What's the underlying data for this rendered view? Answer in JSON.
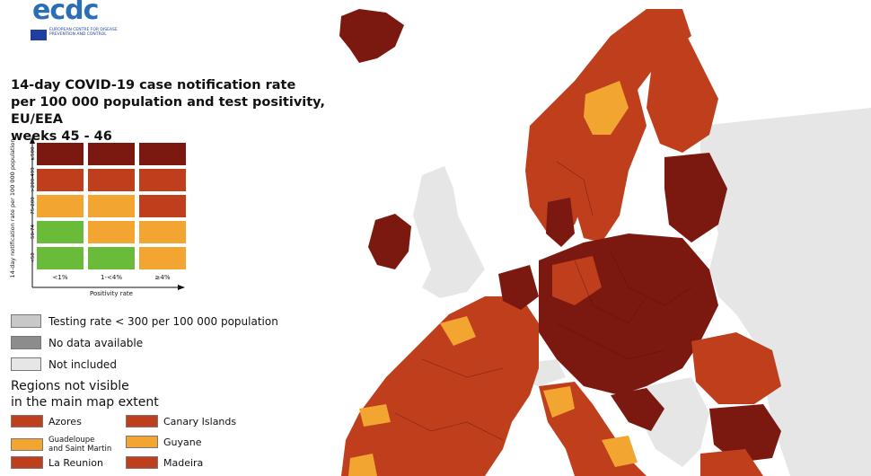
{
  "logo": {
    "word": "ecdc",
    "org": "EUROPEAN CENTRE FOR DISEASE PREVENTION AND CONTROL"
  },
  "title": {
    "line1": "14-day COVID-19 case notification rate",
    "line2": "per 100 000 population and test positivity, EU/EEA",
    "line3": "weeks 45 - 46"
  },
  "matrix": {
    "y_axis_label": "14-day notification rate per 100 000 population",
    "x_axis_label": "Positivity rate",
    "row_labels": [
      "≥500",
      ">200-499",
      "75-200",
      "50-74",
      "<50"
    ],
    "col_labels": [
      "<1%",
      "1-<4%",
      "≥4%"
    ],
    "colors": {
      "dark_red": "#7b1810",
      "red": "#bf3e1c",
      "orange": "#f2a531",
      "green": "#6abb39",
      "testing_grey": "#c8c8c8",
      "no_data": "#8c8c8c",
      "not_included": "#e6e6e6"
    },
    "cells": [
      [
        "dark_red",
        "dark_red",
        "dark_red"
      ],
      [
        "red",
        "red",
        "red"
      ],
      [
        "orange",
        "orange",
        "red"
      ],
      [
        "green",
        "orange",
        "orange"
      ],
      [
        "green",
        "green",
        "orange"
      ]
    ]
  },
  "legend": {
    "testing_rate": "Testing rate < 300 per 100 000 population",
    "no_data": "No data available",
    "not_included": "Not included"
  },
  "regions": {
    "title_line1": "Regions not visible",
    "title_line2": "in the main map extent",
    "items": [
      {
        "label": "Azores",
        "color": "#bf3e1c"
      },
      {
        "label": "Canary Islands",
        "color": "#bf3e1c"
      },
      {
        "label": "Guadeloupe\nand Saint Martin",
        "color": "#f2a531"
      },
      {
        "label": "Guyane",
        "color": "#f2a531"
      },
      {
        "label": "La Reunion",
        "color": "#bf3e1c"
      },
      {
        "label": "Madeira",
        "color": "#bf3e1c"
      }
    ]
  }
}
